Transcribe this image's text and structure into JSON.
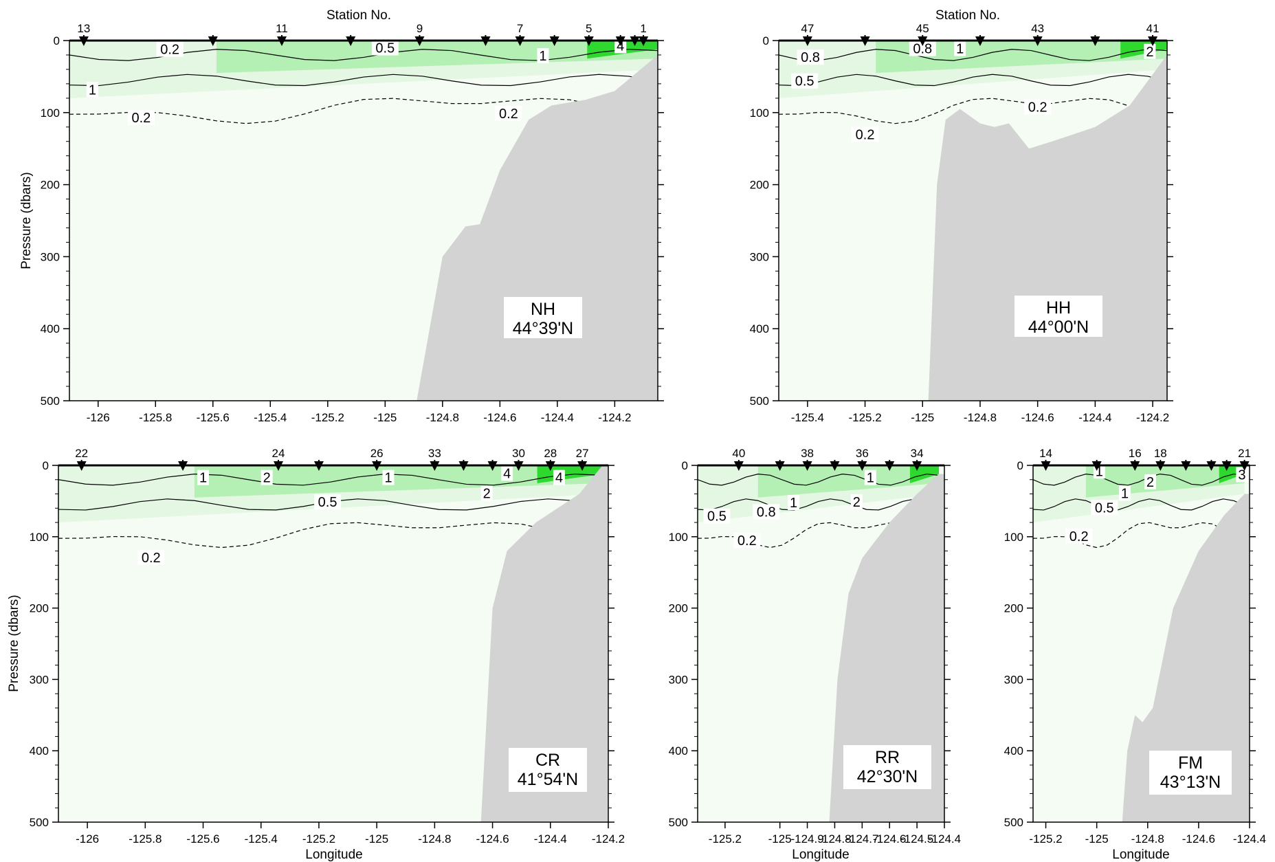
{
  "figure": {
    "y_axis_label": "Pressure (dbars)",
    "x_axis_label": "Longitude",
    "top_axis_label": "Station No.",
    "colors": {
      "water_background": "#f4fcf4",
      "low_green": "#e3f7e3",
      "mid_green": "#b4efb4",
      "high_green": "#2ed82e",
      "seafloor": "#d3d3d3",
      "contour": "#000000"
    }
  },
  "chart_data": [
    {
      "type": "heatmap",
      "section": "NH",
      "latitude": "44°39'N",
      "xlim": [
        -126.1,
        -124.05
      ],
      "ylim": [
        0,
        500
      ],
      "x_ticks": [
        -126,
        -125.8,
        -125.6,
        -125.4,
        -125.2,
        -125,
        -124.8,
        -124.6,
        -124.4,
        -124.2
      ],
      "x_tick_labels": [
        "-126",
        "-125.8",
        "-125.6",
        "-125.4",
        "-125.2",
        "-125",
        "-124.8",
        "-124.6",
        "-124.4",
        "-124.2"
      ],
      "y_ticks": [
        0,
        100,
        200,
        300,
        400,
        500
      ],
      "stations": [
        {
          "lon": -126.05,
          "label": "13"
        },
        {
          "lon": -125.6,
          "label": ""
        },
        {
          "lon": -125.36,
          "label": "11"
        },
        {
          "lon": -125.12,
          "label": ""
        },
        {
          "lon": -124.88,
          "label": "9"
        },
        {
          "lon": -124.65,
          "label": ""
        },
        {
          "lon": -124.53,
          "label": "7"
        },
        {
          "lon": -124.41,
          "label": ""
        },
        {
          "lon": -124.29,
          "label": "5"
        },
        {
          "lon": -124.18,
          "label": ""
        },
        {
          "lon": -124.13,
          "label": ""
        },
        {
          "lon": -124.1,
          "label": "1"
        }
      ],
      "bottom_profile": [
        [
          -124.89,
          500
        ],
        [
          -124.8,
          300
        ],
        [
          -124.72,
          258
        ],
        [
          -124.67,
          255
        ],
        [
          -124.6,
          180
        ],
        [
          -124.5,
          110
        ],
        [
          -124.42,
          90
        ],
        [
          -124.3,
          82
        ],
        [
          -124.2,
          70
        ],
        [
          -124.05,
          20
        ]
      ],
      "contour_labels": [
        {
          "lon": -125.75,
          "depth": 13,
          "label": "0.2"
        },
        {
          "lon": -125.0,
          "depth": 11,
          "label": "0.5"
        },
        {
          "lon": -124.45,
          "depth": 22,
          "label": "1"
        },
        {
          "lon": -124.18,
          "depth": 8,
          "label": "4"
        },
        {
          "lon": -126.02,
          "depth": 69,
          "label": "1"
        },
        {
          "lon": -125.85,
          "depth": 108,
          "label": "0.2"
        },
        {
          "lon": -124.57,
          "depth": 102,
          "label": "0.2"
        }
      ],
      "station_axis_title": true
    },
    {
      "type": "heatmap",
      "section": "HH",
      "latitude": "44°00'N",
      "xlim": [
        -125.5,
        -124.15
      ],
      "ylim": [
        0,
        500
      ],
      "x_ticks": [
        -125.4,
        -125.2,
        -125,
        -124.8,
        -124.6,
        -124.4,
        -124.2
      ],
      "x_tick_labels": [
        "-125.4",
        "-125.2",
        "-125",
        "-124.8",
        "-124.6",
        "-124.4",
        "-124.2"
      ],
      "y_ticks": [
        0,
        100,
        200,
        300,
        400,
        500
      ],
      "stations": [
        {
          "lon": -125.4,
          "label": "47"
        },
        {
          "lon": -125.2,
          "label": ""
        },
        {
          "lon": -125.0,
          "label": "45"
        },
        {
          "lon": -124.8,
          "label": ""
        },
        {
          "lon": -124.6,
          "label": "43"
        },
        {
          "lon": -124.4,
          "label": ""
        },
        {
          "lon": -124.2,
          "label": "41"
        }
      ],
      "bottom_profile": [
        [
          -124.98,
          500
        ],
        [
          -124.95,
          200
        ],
        [
          -124.92,
          110
        ],
        [
          -124.87,
          95
        ],
        [
          -124.8,
          115
        ],
        [
          -124.75,
          120
        ],
        [
          -124.7,
          115
        ],
        [
          -124.63,
          150
        ],
        [
          -124.55,
          140
        ],
        [
          -124.4,
          120
        ],
        [
          -124.28,
          90
        ],
        [
          -124.15,
          20
        ]
      ],
      "contour_labels": [
        {
          "lon": -125.39,
          "depth": 24,
          "label": "0.8"
        },
        {
          "lon": -125.0,
          "depth": 12,
          "label": "0.8"
        },
        {
          "lon": -124.87,
          "depth": 12,
          "label": "1"
        },
        {
          "lon": -124.21,
          "depth": 16,
          "label": "2"
        },
        {
          "lon": -125.41,
          "depth": 57,
          "label": "0.5"
        },
        {
          "lon": -124.6,
          "depth": 93,
          "label": "0.2"
        },
        {
          "lon": -125.2,
          "depth": 131,
          "label": "0.2"
        }
      ],
      "station_axis_title": true
    },
    {
      "type": "heatmap",
      "section": "CR",
      "latitude": "41°54'N",
      "xlim": [
        -126.1,
        -124.2
      ],
      "ylim": [
        0,
        500
      ],
      "x_ticks": [
        -126,
        -125.8,
        -125.6,
        -125.4,
        -125.2,
        -125,
        -124.8,
        -124.6,
        -124.4,
        -124.2
      ],
      "x_tick_labels": [
        "-126",
        "-125.8",
        "-125.6",
        "-125.4",
        "-125.2",
        "-125",
        "-124.8",
        "-124.6",
        "-124.4",
        "-124.2"
      ],
      "y_ticks": [
        0,
        100,
        200,
        300,
        400,
        500
      ],
      "stations": [
        {
          "lon": -126.02,
          "label": "22"
        },
        {
          "lon": -125.67,
          "label": ""
        },
        {
          "lon": -125.34,
          "label": "24"
        },
        {
          "lon": -125.2,
          "label": ""
        },
        {
          "lon": -125.0,
          "label": "26"
        },
        {
          "lon": -124.8,
          "label": "33"
        },
        {
          "lon": -124.7,
          "label": ""
        },
        {
          "lon": -124.6,
          "label": ""
        },
        {
          "lon": -124.51,
          "label": "30"
        },
        {
          "lon": -124.4,
          "label": "28"
        },
        {
          "lon": -124.29,
          "label": "27"
        }
      ],
      "bottom_profile": [
        [
          -124.64,
          500
        ],
        [
          -124.6,
          200
        ],
        [
          -124.55,
          120
        ],
        [
          -124.45,
          80
        ],
        [
          -124.3,
          40
        ],
        [
          -124.22,
          0
        ]
      ],
      "contour_labels": [
        {
          "lon": -125.6,
          "depth": 18,
          "label": "1"
        },
        {
          "lon": -125.38,
          "depth": 18,
          "label": "2"
        },
        {
          "lon": -124.96,
          "depth": 18,
          "label": "1"
        },
        {
          "lon": -124.55,
          "depth": 12,
          "label": "4"
        },
        {
          "lon": -124.37,
          "depth": 18,
          "label": "4"
        },
        {
          "lon": -125.17,
          "depth": 52,
          "label": "0.5"
        },
        {
          "lon": -124.62,
          "depth": 40,
          "label": "2"
        },
        {
          "lon": -125.78,
          "depth": 130,
          "label": "0.2"
        }
      ],
      "station_axis_title": false
    },
    {
      "type": "heatmap",
      "section": "RR",
      "latitude": "42°30'N",
      "xlim": [
        -125.3,
        -124.4
      ],
      "ylim": [
        0,
        500
      ],
      "x_ticks": [
        -125.2,
        -125,
        -124.9,
        -124.8,
        -124.7,
        -124.6,
        -124.5,
        -124.4
      ],
      "x_tick_labels": [
        "-125.2",
        "-125",
        "-124.9",
        "-124.8",
        "-124.7",
        "-124.6",
        "-124.5",
        "-124.4"
      ],
      "y_ticks": [
        0,
        100,
        200,
        300,
        400,
        500
      ],
      "stations": [
        {
          "lon": -125.15,
          "label": "40"
        },
        {
          "lon": -125.0,
          "label": ""
        },
        {
          "lon": -124.9,
          "label": "38"
        },
        {
          "lon": -124.8,
          "label": ""
        },
        {
          "lon": -124.7,
          "label": "36"
        },
        {
          "lon": -124.6,
          "label": ""
        },
        {
          "lon": -124.5,
          "label": "34"
        }
      ],
      "bottom_profile": [
        [
          -124.82,
          500
        ],
        [
          -124.79,
          300
        ],
        [
          -124.75,
          180
        ],
        [
          -124.7,
          130
        ],
        [
          -124.6,
          80
        ],
        [
          -124.5,
          40
        ],
        [
          -124.42,
          12
        ]
      ],
      "contour_labels": [
        {
          "lon": -124.95,
          "depth": 53,
          "label": "1"
        },
        {
          "lon": -124.67,
          "depth": 18,
          "label": "1"
        },
        {
          "lon": -124.72,
          "depth": 52,
          "label": "2"
        },
        {
          "lon": -125.23,
          "depth": 72,
          "label": "0.5"
        },
        {
          "lon": -125.05,
          "depth": 66,
          "label": "0.8"
        },
        {
          "lon": -125.12,
          "depth": 106,
          "label": "0.2"
        }
      ],
      "station_axis_title": false
    },
    {
      "type": "heatmap",
      "section": "FM",
      "latitude": "43°13'N",
      "xlim": [
        -125.25,
        -124.4
      ],
      "ylim": [
        0,
        500
      ],
      "x_ticks": [
        -125.2,
        -125,
        -124.8,
        -124.6,
        -124.4
      ],
      "x_tick_labels": [
        "-125.2",
        "-125",
        "-124.8",
        "-124.6",
        "-124.4"
      ],
      "y_ticks": [
        0,
        100,
        200,
        300,
        400,
        500
      ],
      "stations": [
        {
          "lon": -125.2,
          "label": "14"
        },
        {
          "lon": -125.0,
          "label": ""
        },
        {
          "lon": -124.85,
          "label": "16"
        },
        {
          "lon": -124.75,
          "label": "18"
        },
        {
          "lon": -124.65,
          "label": ""
        },
        {
          "lon": -124.55,
          "label": ""
        },
        {
          "lon": -124.49,
          "label": ""
        },
        {
          "lon": -124.42,
          "label": "21"
        }
      ],
      "bottom_profile": [
        [
          -124.9,
          500
        ],
        [
          -124.88,
          400
        ],
        [
          -124.85,
          350
        ],
        [
          -124.82,
          360
        ],
        [
          -124.78,
          340
        ],
        [
          -124.7,
          200
        ],
        [
          -124.6,
          120
        ],
        [
          -124.5,
          70
        ],
        [
          -124.42,
          40
        ]
      ],
      "contour_labels": [
        {
          "lon": -124.99,
          "depth": 9,
          "label": "1"
        },
        {
          "lon": -124.79,
          "depth": 24,
          "label": "2"
        },
        {
          "lon": -124.43,
          "depth": 14,
          "label": "3"
        },
        {
          "lon": -124.89,
          "depth": 40,
          "label": "1"
        },
        {
          "lon": -124.97,
          "depth": 60,
          "label": "0.5"
        },
        {
          "lon": -125.07,
          "depth": 100,
          "label": "0.2"
        }
      ],
      "station_axis_title": false
    }
  ]
}
